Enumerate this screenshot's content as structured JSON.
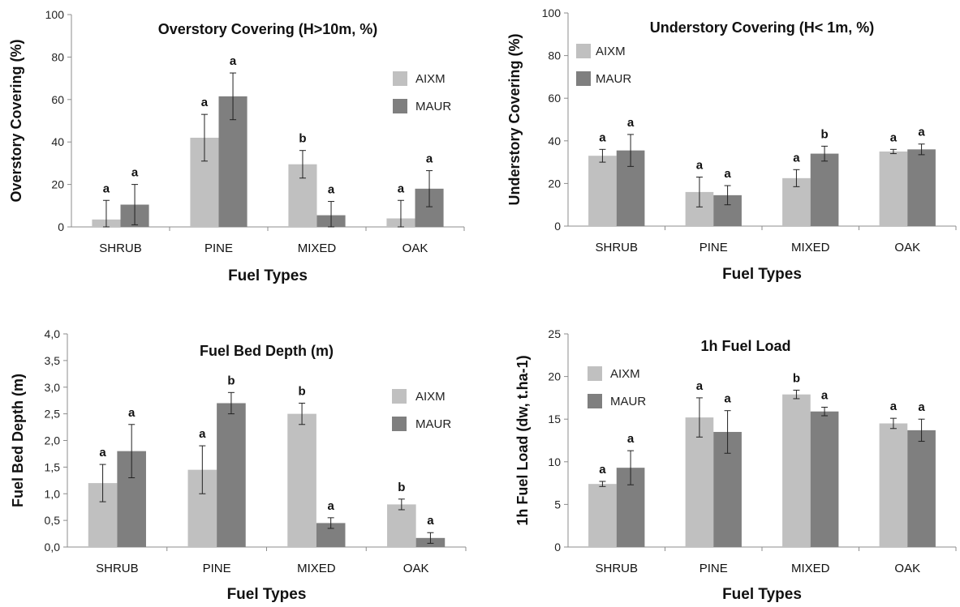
{
  "colors": {
    "AIXM": "#c0c0c0",
    "MAUR": "#7f7f7f",
    "axis": "#8c8c8c",
    "errorbar": "#222222"
  },
  "chart_data": [
    {
      "type": "bar",
      "title": "Overstory Covering (H>10m, %)",
      "xlabel": "Fuel Types",
      "ylabel": "Overstory Covering (%)",
      "categories": [
        "SHRUB",
        "PINE",
        "MIXED",
        "OAK"
      ],
      "ylim": [
        0,
        100
      ],
      "yticks": [
        "0",
        "20",
        "40",
        "60",
        "80",
        "100"
      ],
      "legend_position": "right",
      "series": [
        {
          "name": "AIXM",
          "values": [
            3.5,
            42,
            29.5,
            4
          ],
          "errors": [
            9,
            11,
            6.5,
            8.5
          ],
          "letters": [
            "a",
            "a",
            "b",
            "a"
          ]
        },
        {
          "name": "MAUR",
          "values": [
            10.5,
            61.5,
            5.5,
            18
          ],
          "errors": [
            9.5,
            11,
            6.5,
            8.5
          ],
          "letters": [
            "a",
            "a",
            "a",
            "a"
          ]
        }
      ]
    },
    {
      "type": "bar",
      "title": "Understory Covering (H< 1m, %)",
      "xlabel": "Fuel Types",
      "ylabel": "Understory Covering (%)",
      "categories": [
        "SHRUB",
        "PINE",
        "MIXED",
        "OAK"
      ],
      "ylim": [
        0,
        100
      ],
      "yticks": [
        "0",
        "20",
        "40",
        "60",
        "80",
        "100"
      ],
      "legend_position": "top-left",
      "series": [
        {
          "name": "AIXM",
          "values": [
            33,
            16,
            22.5,
            35
          ],
          "errors": [
            3,
            7,
            4,
            1
          ],
          "letters": [
            "a",
            "a",
            "a",
            "a"
          ]
        },
        {
          "name": "MAUR",
          "values": [
            35.5,
            14.5,
            34,
            36
          ],
          "errors": [
            7.5,
            4.5,
            3.5,
            2.5
          ],
          "letters": [
            "a",
            "a",
            "b",
            "a"
          ]
        }
      ]
    },
    {
      "type": "bar",
      "title": "Fuel Bed Depth (m)",
      "xlabel": "Fuel Types",
      "ylabel": "Fuel Bed Depth (m)",
      "categories": [
        "SHRUB",
        "PINE",
        "MIXED",
        "OAK"
      ],
      "ylim": [
        0,
        4
      ],
      "yticks": [
        "0,0",
        "0,5",
        "1,0",
        "1,5",
        "2,0",
        "2,5",
        "3,0",
        "3,5",
        "4,0"
      ],
      "legend_position": "right",
      "series": [
        {
          "name": "AIXM",
          "values": [
            1.2,
            1.45,
            2.5,
            0.8
          ],
          "errors": [
            0.35,
            0.45,
            0.2,
            0.1
          ],
          "letters": [
            "a",
            "a",
            "b",
            "b"
          ]
        },
        {
          "name": "MAUR",
          "values": [
            1.8,
            2.7,
            0.45,
            0.17
          ],
          "errors": [
            0.5,
            0.2,
            0.1,
            0.1
          ],
          "letters": [
            "a",
            "b",
            "a",
            "a"
          ]
        }
      ]
    },
    {
      "type": "bar",
      "title": "1h Fuel Load",
      "xlabel": "Fuel Types",
      "ylabel": "1h Fuel Load (dw, t.ha-1)",
      "categories": [
        "SHRUB",
        "PINE",
        "MIXED",
        "OAK"
      ],
      "ylim": [
        0,
        25
      ],
      "yticks": [
        "0",
        "5",
        "10",
        "15",
        "20",
        "25"
      ],
      "legend_position": "top-left",
      "series": [
        {
          "name": "AIXM",
          "values": [
            7.4,
            15.2,
            17.9,
            14.5
          ],
          "errors": [
            0.3,
            2.3,
            0.5,
            0.6
          ],
          "letters": [
            "a",
            "a",
            "b",
            "a"
          ]
        },
        {
          "name": "MAUR",
          "values": [
            9.3,
            13.5,
            15.9,
            13.7
          ],
          "errors": [
            2,
            2.5,
            0.5,
            1.3
          ],
          "letters": [
            "a",
            "a",
            "a",
            "a"
          ]
        }
      ]
    }
  ]
}
